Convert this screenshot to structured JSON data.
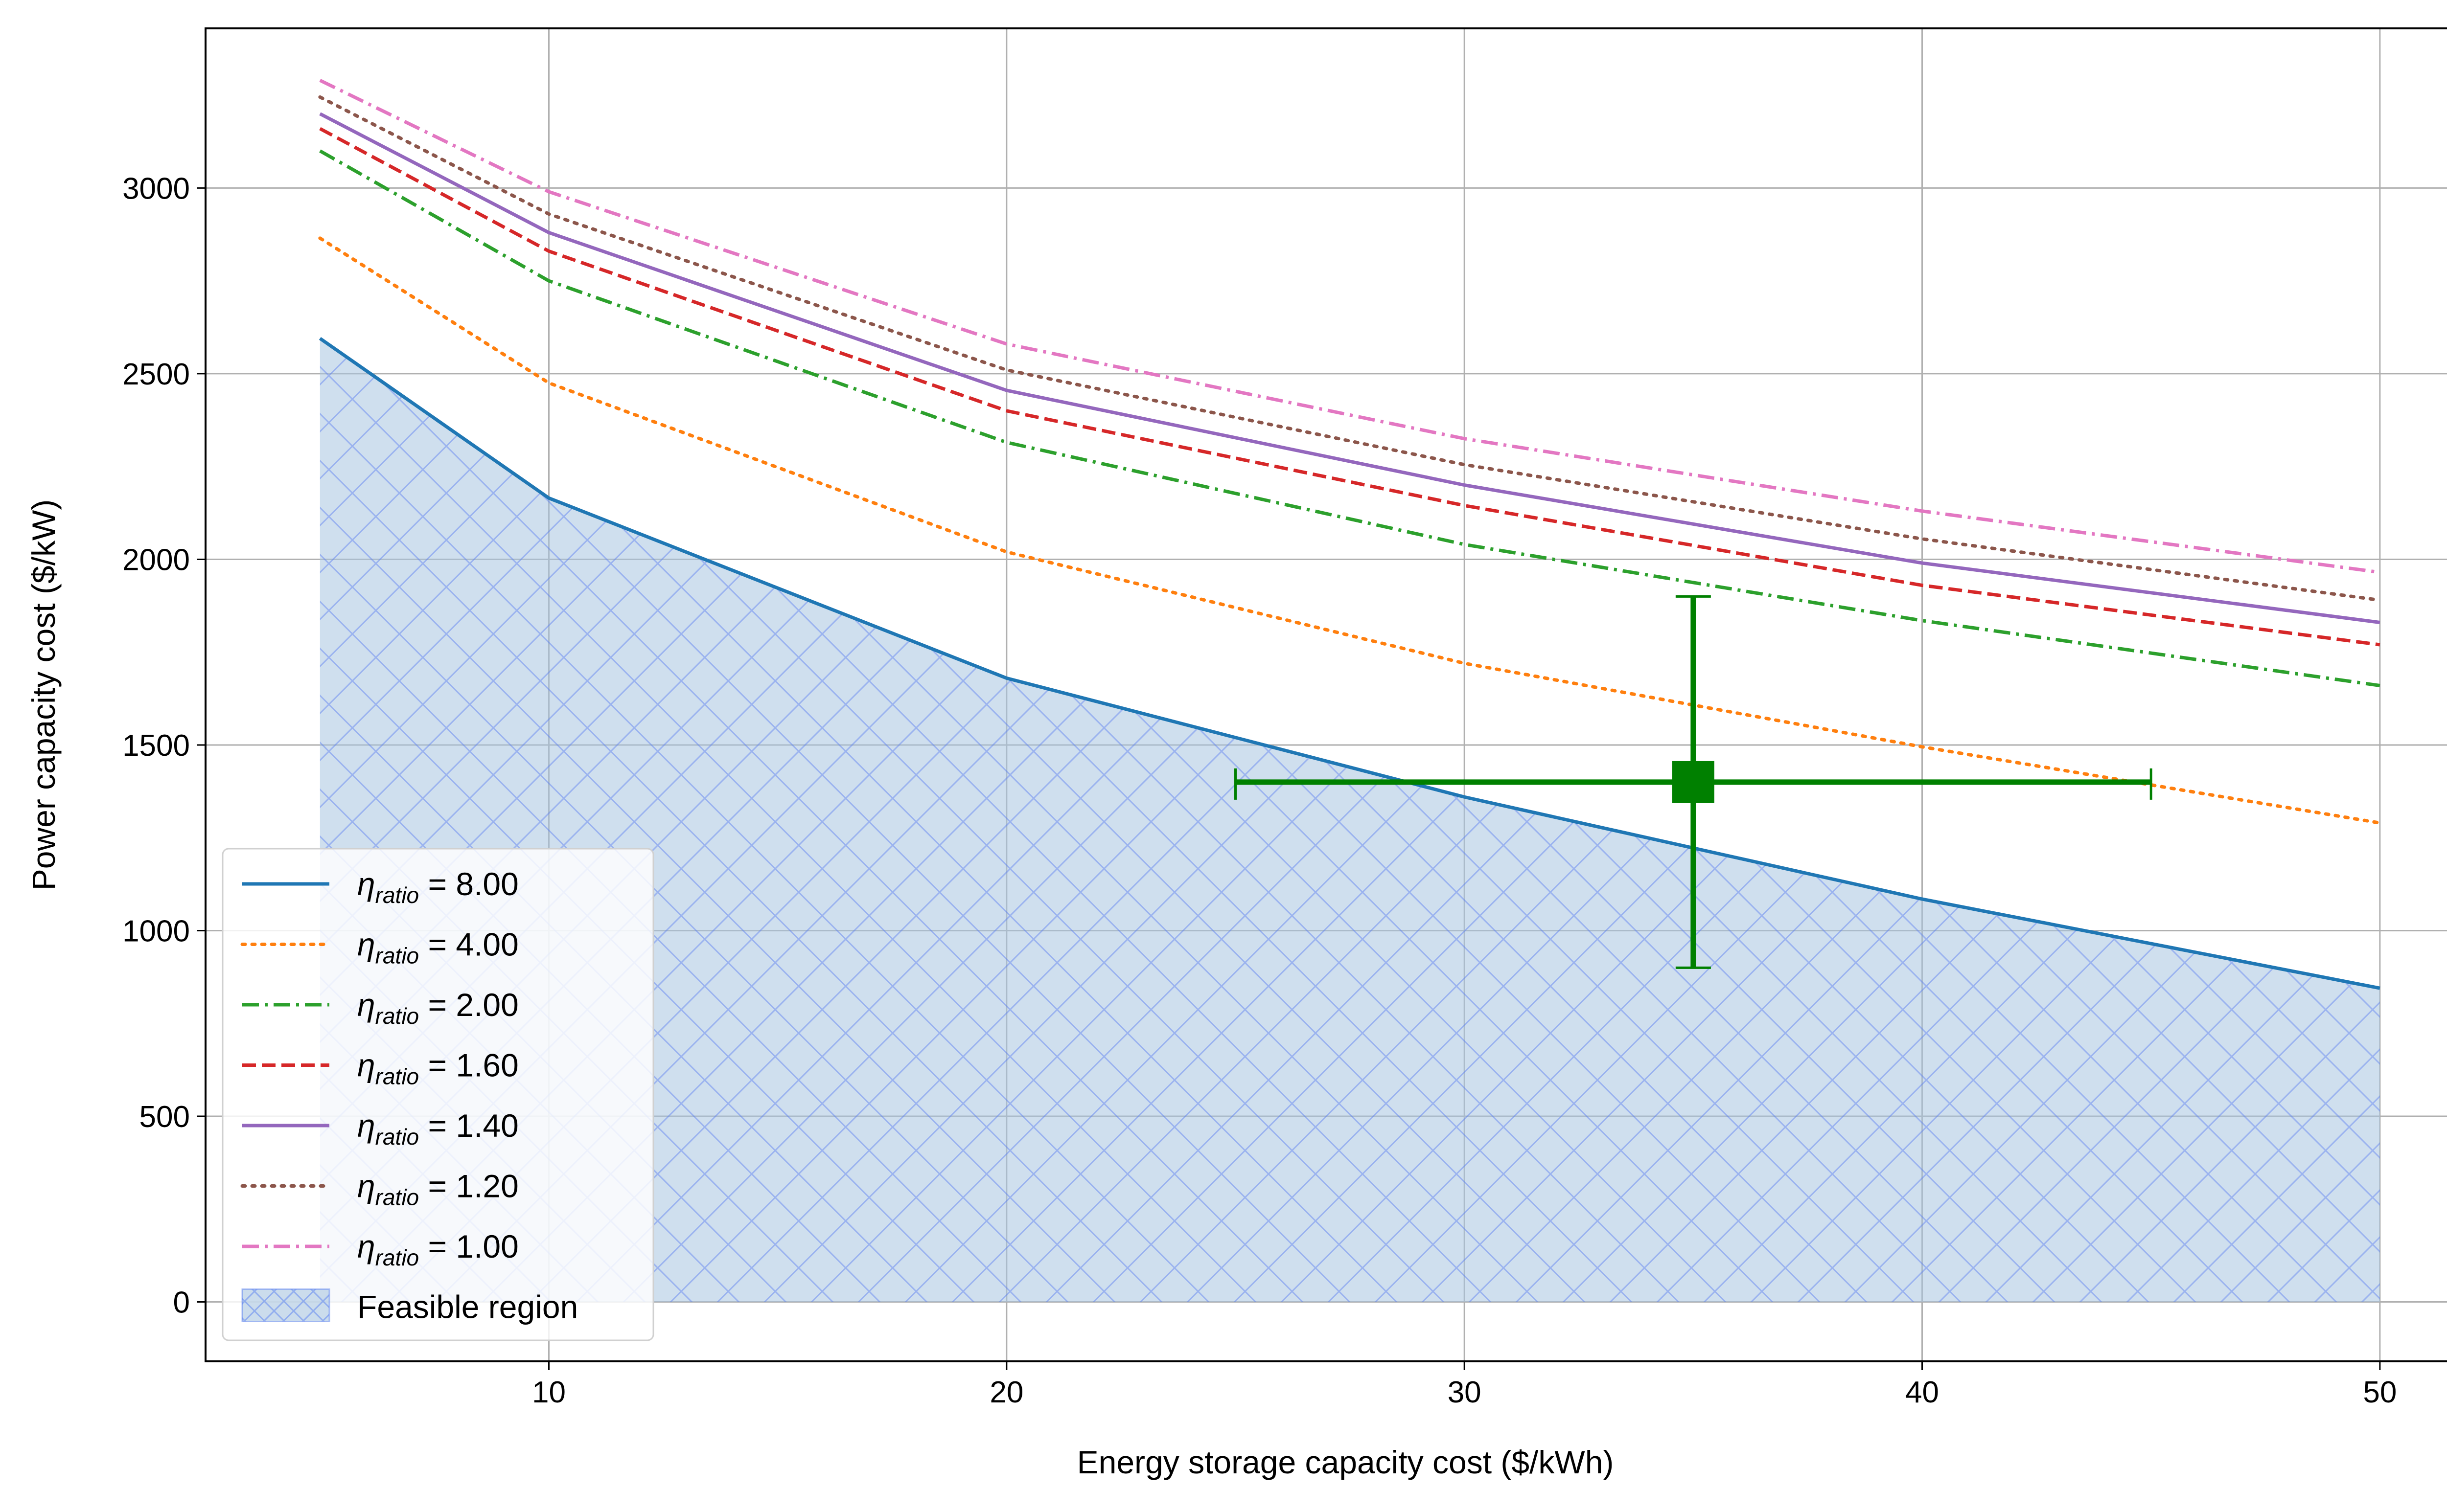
{
  "chart_data": {
    "type": "line",
    "title": "",
    "xlabel": "Energy storage capacity cost ($/kWh)",
    "ylabel": "Power capacity cost ($/kW)",
    "xlim": [
      2.5,
      52.3
    ],
    "ylim": [
      -160,
      3430
    ],
    "xticks": [
      10,
      20,
      30,
      40,
      50
    ],
    "yticks": [
      0,
      500,
      1000,
      1500,
      2000,
      2500,
      3000
    ],
    "grid": true,
    "legend_position": "lower-left",
    "x": [
      5,
      10,
      20,
      30,
      40,
      50
    ],
    "series": [
      {
        "name": "η_ratio = 8.00",
        "eta_symbol": "η",
        "eta_subscript": "ratio",
        "eta_value": "=  8.00",
        "color": "#1f77b4",
        "style": "solid",
        "values": [
          2595,
          2165,
          1680,
          1360,
          1085,
          845
        ]
      },
      {
        "name": "η_ratio = 4.00",
        "eta_symbol": "η",
        "eta_subscript": "ratio",
        "eta_value": "=  4.00",
        "color": "#ff7f0e",
        "style": "dotted",
        "values": [
          2865,
          2475,
          2020,
          1720,
          1495,
          1290
        ]
      },
      {
        "name": "η_ratio = 2.00",
        "eta_symbol": "η",
        "eta_subscript": "ratio",
        "eta_value": "=  2.00",
        "color": "#2ca02c",
        "style": "dashdot",
        "values": [
          3100,
          2750,
          2315,
          2040,
          1835,
          1660
        ]
      },
      {
        "name": "η_ratio = 1.60",
        "eta_symbol": "η",
        "eta_subscript": "ratio",
        "eta_value": "=  1.60",
        "color": "#d62728",
        "style": "dashed",
        "values": [
          3160,
          2830,
          2400,
          2145,
          1930,
          1770
        ]
      },
      {
        "name": "η_ratio = 1.40",
        "eta_symbol": "η",
        "eta_subscript": "ratio",
        "eta_value": "=  1.40",
        "color": "#9467bd",
        "style": "solid",
        "values": [
          3200,
          2880,
          2455,
          2200,
          1990,
          1830
        ]
      },
      {
        "name": "η_ratio = 1.20",
        "eta_symbol": "η",
        "eta_subscript": "ratio",
        "eta_value": "=  1.20",
        "color": "#8c564b",
        "style": "dotted",
        "values": [
          3245,
          2930,
          2510,
          2255,
          2055,
          1890
        ]
      },
      {
        "name": "η_ratio = 1.00",
        "eta_symbol": "η",
        "eta_subscript": "ratio",
        "eta_value": "=  1.00",
        "color": "#e377c2",
        "style": "dashdot",
        "values": [
          3290,
          2990,
          2580,
          2325,
          2130,
          1965
        ]
      }
    ],
    "feasible_region": {
      "name": "Feasible region",
      "fill_color": "#a8c4e0",
      "hatch_color": "#5a7ff0",
      "x": [
        5,
        10,
        20,
        30,
        40,
        50
      ],
      "upper": [
        2595,
        2165,
        1680,
        1360,
        1085,
        845
      ],
      "lower": 0
    },
    "error_point": {
      "x": 35,
      "y": 1400,
      "x_range": [
        25,
        45
      ],
      "y_range": [
        900,
        1900
      ],
      "color": "#008000",
      "marker": "square"
    }
  }
}
